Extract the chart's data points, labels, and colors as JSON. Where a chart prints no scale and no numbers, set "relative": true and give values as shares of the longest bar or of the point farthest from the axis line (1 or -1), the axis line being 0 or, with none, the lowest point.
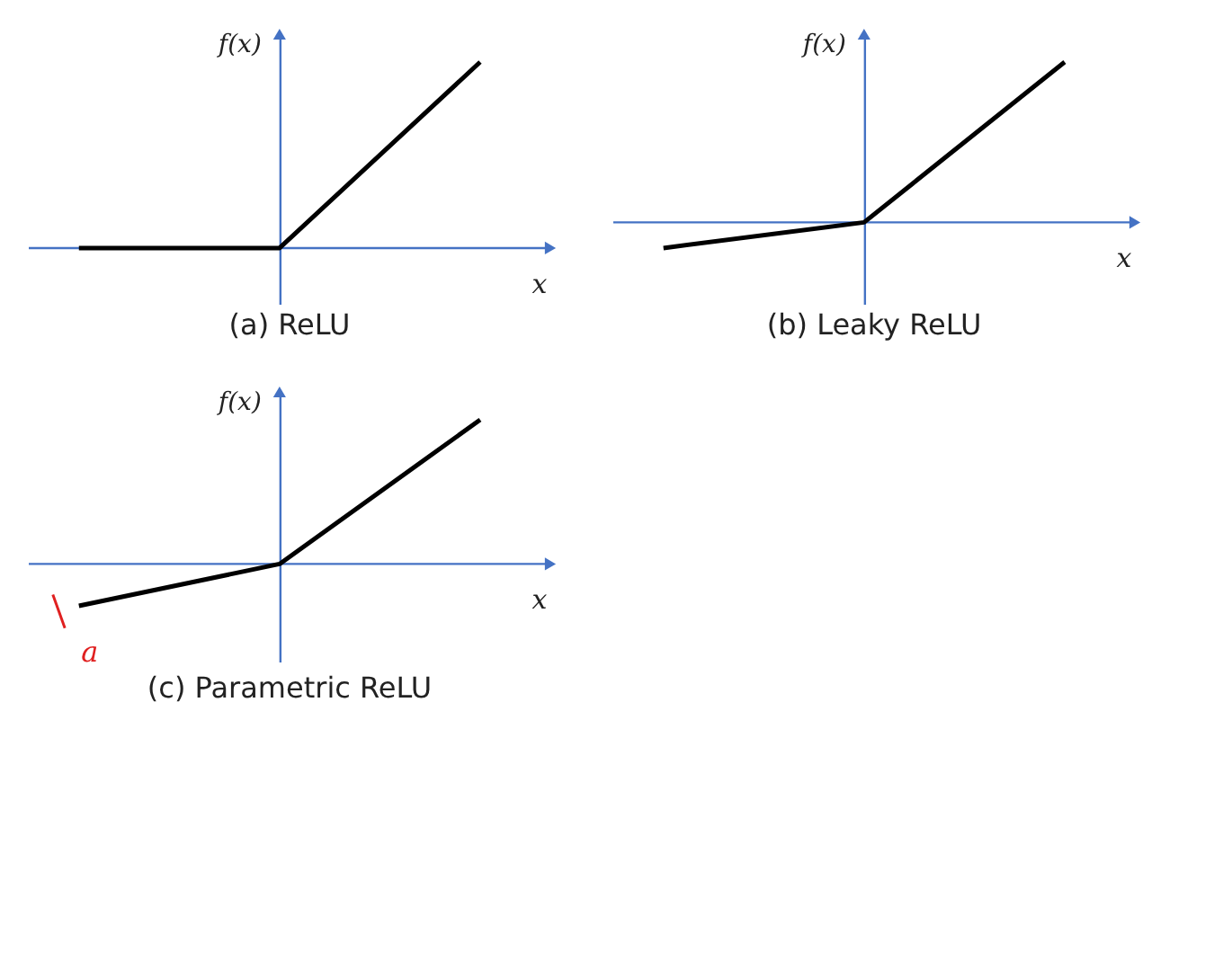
{
  "chart_data": [
    {
      "type": "line",
      "title": "(a) ReLU",
      "xlabel": "x",
      "ylabel": "f(x)",
      "categories": [
        null,
        null,
        null
      ],
      "relative": true,
      "tick_labels": false,
      "ref_lines": [
        {
          "axis": "y",
          "value": 0,
          "color": "#4472c4"
        }
      ],
      "series": [
        {
          "color": "#000000",
          "values": [
            0,
            0,
            1
          ]
        }
      ]
    },
    {
      "type": "line",
      "title": "(b) Leaky ReLU",
      "xlabel": "x",
      "ylabel": "f(x)",
      "categories": [
        null,
        null,
        null
      ],
      "relative": true,
      "tick_labels": false,
      "ref_lines": [
        {
          "axis": "y",
          "value": 0,
          "color": "#4472c4"
        }
      ],
      "series": [
        {
          "color": "#000000",
          "values": [
            -0.16,
            0,
            1
          ]
        }
      ]
    },
    {
      "type": "line",
      "title": "(c) Parametric ReLU",
      "xlabel": "x",
      "ylabel": "f(x)",
      "categories": [
        null,
        null,
        null
      ],
      "relative": true,
      "tick_labels": false,
      "annotations": [
        "a"
      ],
      "ref_lines": [
        {
          "axis": "y",
          "value": 0,
          "color": "#4472c4"
        }
      ],
      "series": [
        {
          "color": "#000000",
          "values": [
            -0.29,
            0,
            1
          ]
        }
      ]
    }
  ]
}
